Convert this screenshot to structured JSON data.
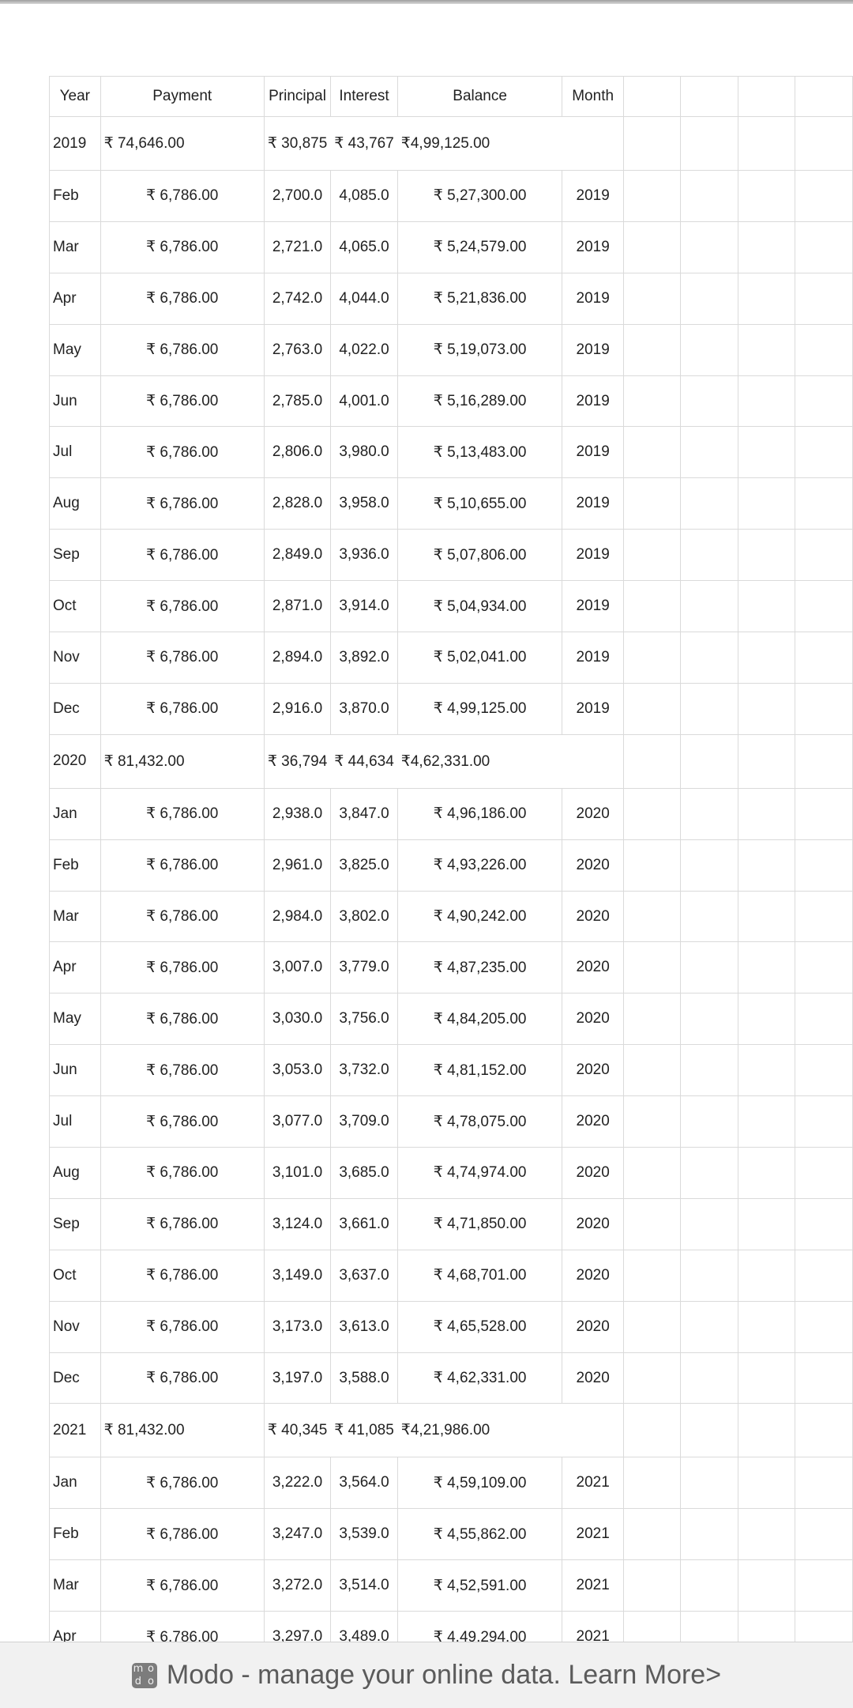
{
  "header": {
    "year": "Year",
    "payment": "Payment",
    "principal": "Principal",
    "interest": "Interest",
    "balance": "Balance",
    "month": "Month"
  },
  "groups": [
    {
      "summary": {
        "year": "2019",
        "payment": "₹ 74,646.00",
        "principal": "₹ 30,875",
        "interest": "₹ 43,767",
        "balance": "₹4,99,125.00"
      },
      "rows": [
        {
          "m": "Feb",
          "pay": "₹ 6,786.00",
          "pr": "2,700.0",
          "in": "4,085.0",
          "bal": "₹ 5,27,300.00",
          "y": "2019"
        },
        {
          "m": "Mar",
          "pay": "₹ 6,786.00",
          "pr": "2,721.0",
          "in": "4,065.0",
          "bal": "₹ 5,24,579.00",
          "y": "2019"
        },
        {
          "m": "Apr",
          "pay": "₹ 6,786.00",
          "pr": "2,742.0",
          "in": "4,044.0",
          "bal": "₹ 5,21,836.00",
          "y": "2019"
        },
        {
          "m": "May",
          "pay": "₹ 6,786.00",
          "pr": "2,763.0",
          "in": "4,022.0",
          "bal": "₹ 5,19,073.00",
          "y": "2019"
        },
        {
          "m": "Jun",
          "pay": "₹ 6,786.00",
          "pr": "2,785.0",
          "in": "4,001.0",
          "bal": "₹ 5,16,289.00",
          "y": "2019"
        },
        {
          "m": "Jul",
          "pay": "₹ 6,786.00",
          "pr": "2,806.0",
          "in": "3,980.0",
          "bal": "₹ 5,13,483.00",
          "y": "2019"
        },
        {
          "m": "Aug",
          "pay": "₹ 6,786.00",
          "pr": "2,828.0",
          "in": "3,958.0",
          "bal": "₹ 5,10,655.00",
          "y": "2019"
        },
        {
          "m": "Sep",
          "pay": "₹ 6,786.00",
          "pr": "2,849.0",
          "in": "3,936.0",
          "bal": "₹ 5,07,806.00",
          "y": "2019"
        },
        {
          "m": "Oct",
          "pay": "₹ 6,786.00",
          "pr": "2,871.0",
          "in": "3,914.0",
          "bal": "₹ 5,04,934.00",
          "y": "2019"
        },
        {
          "m": "Nov",
          "pay": "₹ 6,786.00",
          "pr": "2,894.0",
          "in": "3,892.0",
          "bal": "₹ 5,02,041.00",
          "y": "2019"
        },
        {
          "m": "Dec",
          "pay": "₹ 6,786.00",
          "pr": "2,916.0",
          "in": "3,870.0",
          "bal": "₹ 4,99,125.00",
          "y": "2019"
        }
      ]
    },
    {
      "summary": {
        "year": "2020",
        "payment": "₹ 81,432.00",
        "principal": "₹ 36,794",
        "interest": "₹ 44,634",
        "balance": "₹4,62,331.00"
      },
      "rows": [
        {
          "m": "Jan",
          "pay": "₹ 6,786.00",
          "pr": "2,938.0",
          "in": "3,847.0",
          "bal": "₹ 4,96,186.00",
          "y": "2020"
        },
        {
          "m": "Feb",
          "pay": "₹ 6,786.00",
          "pr": "2,961.0",
          "in": "3,825.0",
          "bal": "₹ 4,93,226.00",
          "y": "2020"
        },
        {
          "m": "Mar",
          "pay": "₹ 6,786.00",
          "pr": "2,984.0",
          "in": "3,802.0",
          "bal": "₹ 4,90,242.00",
          "y": "2020"
        },
        {
          "m": "Apr",
          "pay": "₹ 6,786.00",
          "pr": "3,007.0",
          "in": "3,779.0",
          "bal": "₹ 4,87,235.00",
          "y": "2020"
        },
        {
          "m": "May",
          "pay": "₹ 6,786.00",
          "pr": "3,030.0",
          "in": "3,756.0",
          "bal": "₹ 4,84,205.00",
          "y": "2020"
        },
        {
          "m": "Jun",
          "pay": "₹ 6,786.00",
          "pr": "3,053.0",
          "in": "3,732.0",
          "bal": "₹ 4,81,152.00",
          "y": "2020"
        },
        {
          "m": "Jul",
          "pay": "₹ 6,786.00",
          "pr": "3,077.0",
          "in": "3,709.0",
          "bal": "₹ 4,78,075.00",
          "y": "2020"
        },
        {
          "m": "Aug",
          "pay": "₹ 6,786.00",
          "pr": "3,101.0",
          "in": "3,685.0",
          "bal": "₹ 4,74,974.00",
          "y": "2020"
        },
        {
          "m": "Sep",
          "pay": "₹ 6,786.00",
          "pr": "3,124.0",
          "in": "3,661.0",
          "bal": "₹ 4,71,850.00",
          "y": "2020"
        },
        {
          "m": "Oct",
          "pay": "₹ 6,786.00",
          "pr": "3,149.0",
          "in": "3,637.0",
          "bal": "₹ 4,68,701.00",
          "y": "2020"
        },
        {
          "m": "Nov",
          "pay": "₹ 6,786.00",
          "pr": "3,173.0",
          "in": "3,613.0",
          "bal": "₹ 4,65,528.00",
          "y": "2020"
        },
        {
          "m": "Dec",
          "pay": "₹ 6,786.00",
          "pr": "3,197.0",
          "in": "3,588.0",
          "bal": "₹ 4,62,331.00",
          "y": "2020"
        }
      ]
    },
    {
      "summary": {
        "year": "2021",
        "payment": "₹ 81,432.00",
        "principal": "₹ 40,345",
        "interest": "₹ 41,085",
        "balance": "₹4,21,986.00"
      },
      "rows": [
        {
          "m": "Jan",
          "pay": "₹ 6,786.00",
          "pr": "3,222.0",
          "in": "3,564.0",
          "bal": "₹ 4,59,109.00",
          "y": "2021"
        },
        {
          "m": "Feb",
          "pay": "₹ 6,786.00",
          "pr": "3,247.0",
          "in": "3,539.0",
          "bal": "₹ 4,55,862.00",
          "y": "2021"
        },
        {
          "m": "Mar",
          "pay": "₹ 6,786.00",
          "pr": "3,272.0",
          "in": "3,514.0",
          "bal": "₹ 4,52,591.00",
          "y": "2021"
        },
        {
          "m": "Apr",
          "pay": "₹ 6,786.00",
          "pr": "3,297.0",
          "in": "3,489.0",
          "bal": "₹ 4,49,294.00",
          "y": "2021"
        }
      ]
    }
  ],
  "banner": {
    "logo_text": [
      "m",
      "o",
      "d",
      "o"
    ],
    "text": "Modo - manage your online data. Learn More>"
  }
}
